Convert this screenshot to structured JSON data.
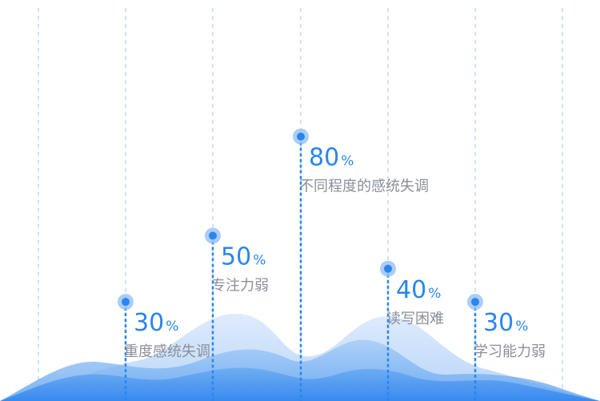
{
  "colors": {
    "accent": "#2a86ec",
    "label": "#8a8f99",
    "grid": "#9ec7f2",
    "area_light": "#d6e6fb",
    "area_mid": "#9cc4f5",
    "area_dark": "#3d8ef0"
  },
  "chart_data": {
    "type": "bar",
    "title": "",
    "xlabel": "",
    "ylabel": "",
    "ylim": [
      0,
      100
    ],
    "grid": true,
    "unit": "%",
    "items": [
      {
        "value": 30,
        "value_text": "30",
        "label": "重度感统失调"
      },
      {
        "value": 50,
        "value_text": "50",
        "label": "专注力弱"
      },
      {
        "value": 80,
        "value_text": "80",
        "label": "不同程度的感统失调"
      },
      {
        "value": 40,
        "value_text": "40",
        "label": "读写困难"
      },
      {
        "value": 30,
        "value_text": "30",
        "label": "学习能力弱"
      }
    ]
  }
}
